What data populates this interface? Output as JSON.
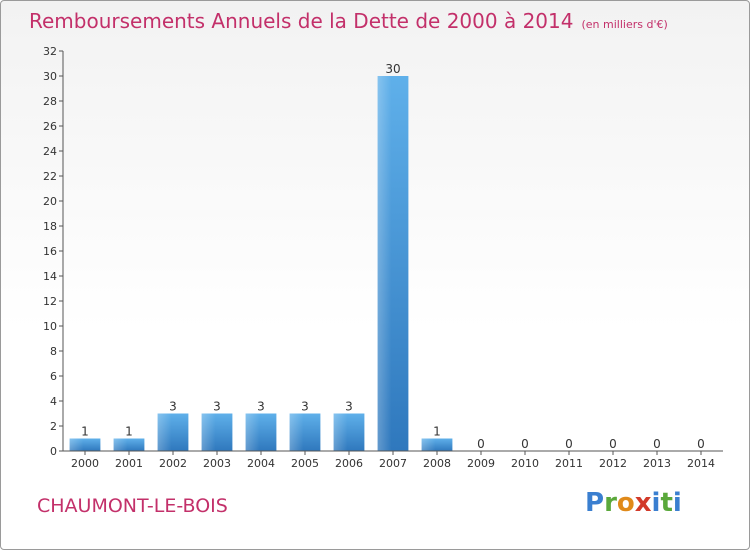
{
  "chart_data": {
    "type": "bar",
    "title": "Remboursements Annuels de la Dette de 2000 à 2014",
    "unit_note": "(en milliers d'€)",
    "categories": [
      "2000",
      "2001",
      "2002",
      "2003",
      "2004",
      "2005",
      "2006",
      "2007",
      "2008",
      "2009",
      "2010",
      "2011",
      "2012",
      "2013",
      "2014"
    ],
    "values": [
      1,
      1,
      3,
      3,
      3,
      3,
      3,
      30,
      1,
      0,
      0,
      0,
      0,
      0,
      0
    ],
    "data_labels": [
      "1",
      "1",
      "3",
      "3",
      "3",
      "3",
      "3",
      "30",
      "1",
      "0",
      "0",
      "0",
      "0",
      "0",
      "0"
    ],
    "ylim": [
      0,
      32
    ],
    "yticks": [
      "0",
      "2",
      "4",
      "6",
      "8",
      "10",
      "12",
      "14",
      "16",
      "18",
      "20",
      "22",
      "24",
      "26",
      "28",
      "30",
      "32"
    ],
    "ytick_values": [
      0,
      2,
      4,
      6,
      8,
      10,
      12,
      14,
      16,
      18,
      20,
      22,
      24,
      26,
      28,
      30,
      32
    ],
    "xlabel": "",
    "ylabel": "",
    "grid": false,
    "bar_color": "#3a8fd6"
  },
  "footer": {
    "commune": "CHAUMONT-LE-BOIS"
  },
  "logo": {
    "letters": [
      "P",
      "r",
      "o",
      "x",
      "i",
      "t",
      "i"
    ],
    "colors": [
      "#3a7fd0",
      "#5aa83b",
      "#e08a1a",
      "#d23a2a",
      "#3a7fd0",
      "#5aa83b",
      "#3a7fd0"
    ]
  },
  "colors": {
    "title": "#c3306a"
  }
}
